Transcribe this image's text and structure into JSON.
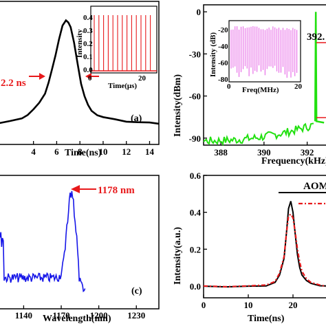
{
  "colors": {
    "black": "#000000",
    "red": "#e8191b",
    "green": "#22e010",
    "blue": "#1515e8",
    "magenta": "#e040e0"
  },
  "chart_data": [
    {
      "id": "a",
      "type": "line",
      "panel_label": "(a)",
      "xlabel": "Time(ns)",
      "ylabel": "",
      "xticks": [
        "4",
        "6",
        "8",
        "10",
        "12",
        "14"
      ],
      "xlim": [
        1,
        14.8
      ],
      "annotation": "2.2 ns",
      "series": [
        {
          "x": [
            1,
            2,
            3,
            3.5,
            4,
            4.5,
            5,
            5.3,
            5.6,
            5.9,
            6.2,
            6.5,
            6.8,
            7,
            7.2,
            7.5,
            7.8,
            8.1,
            8.4,
            8.7,
            9,
            9.5,
            10,
            11,
            12,
            13,
            14,
            14.8
          ],
          "y": [
            0.05,
            0.07,
            0.1,
            0.13,
            0.18,
            0.24,
            0.33,
            0.42,
            0.55,
            0.68,
            0.83,
            0.95,
            1.0,
            0.99,
            0.94,
            0.8,
            0.6,
            0.42,
            0.3,
            0.22,
            0.17,
            0.13,
            0.1,
            0.08,
            0.07,
            0.06,
            0.05,
            0.05
          ]
        }
      ],
      "inset": {
        "xlabel": "Time(μs)",
        "ylabel": "Intensity",
        "xticks": [
          "0",
          "20"
        ],
        "yticks": [
          "0.0",
          "0.1",
          "0.2",
          "0.3",
          "0.4"
        ],
        "pulse_count": 13
      }
    },
    {
      "id": "b",
      "type": "line",
      "panel_label": "",
      "xlabel": "Frequency(kHz)",
      "ylabel": "Intensity(dBm)",
      "xticks": [
        "388",
        "390",
        "392"
      ],
      "xlim": [
        387.2,
        393
      ],
      "yticks": [
        "-90",
        "-60",
        "-30",
        "0"
      ],
      "ylim": [
        -95,
        5
      ],
      "annotation": "392.",
      "series": [
        {
          "peak_x": 392.4,
          "peak_y": 0,
          "noise_floor_start": -92,
          "noise_floor_end": -80
        }
      ],
      "inset": {
        "xlabel": "Freq(MHz)",
        "ylabel": "Intensity (dB)",
        "xticks": [
          "0",
          "20"
        ],
        "yticks": [
          "-20",
          "-40",
          "-60",
          "-80"
        ]
      }
    },
    {
      "id": "c",
      "type": "line",
      "panel_label": "(c)",
      "xlabel": "Wavelength(nm)",
      "ylabel": "",
      "xticks": [
        "1140",
        "1170",
        "1200",
        "1230"
      ],
      "xlim": [
        1120,
        1248
      ],
      "annotation": "1178 nm",
      "series": [
        {
          "peak_x": 1178,
          "fwhm": 8
        }
      ]
    },
    {
      "id": "d",
      "type": "line",
      "panel_label": "",
      "xlabel": "Time(ns)",
      "ylabel": "Intensity(a.u.)",
      "xticks": [
        "0",
        "10",
        "20"
      ],
      "xlim": [
        0,
        28
      ],
      "yticks": [
        "0.0",
        "0.2",
        "0.4",
        "0.6"
      ],
      "ylim": [
        -0.02,
        0.6
      ],
      "legend": "AOM",
      "series": [
        {
          "name": "AOM",
          "x": [
            0,
            5,
            10,
            14,
            16,
            17,
            18,
            18.5,
            19,
            19.5,
            20,
            20.5,
            21,
            21.5,
            22,
            23,
            24,
            26,
            28
          ],
          "y": [
            0,
            0,
            0,
            0.003,
            0.02,
            0.06,
            0.15,
            0.28,
            0.42,
            0.46,
            0.4,
            0.28,
            0.17,
            0.1,
            0.06,
            0.03,
            0.015,
            0.005,
            0
          ]
        },
        {
          "name": "",
          "x": [
            0,
            5,
            10,
            14,
            16,
            17,
            18,
            18.5,
            19,
            19.5,
            20,
            20.5,
            21,
            21.5,
            22,
            23,
            24,
            26,
            28
          ],
          "y": [
            0,
            0,
            0,
            0.004,
            0.025,
            0.07,
            0.16,
            0.28,
            0.38,
            0.39,
            0.37,
            0.29,
            0.2,
            0.13,
            0.08,
            0.04,
            0.02,
            0.006,
            0
          ]
        }
      ]
    }
  ]
}
